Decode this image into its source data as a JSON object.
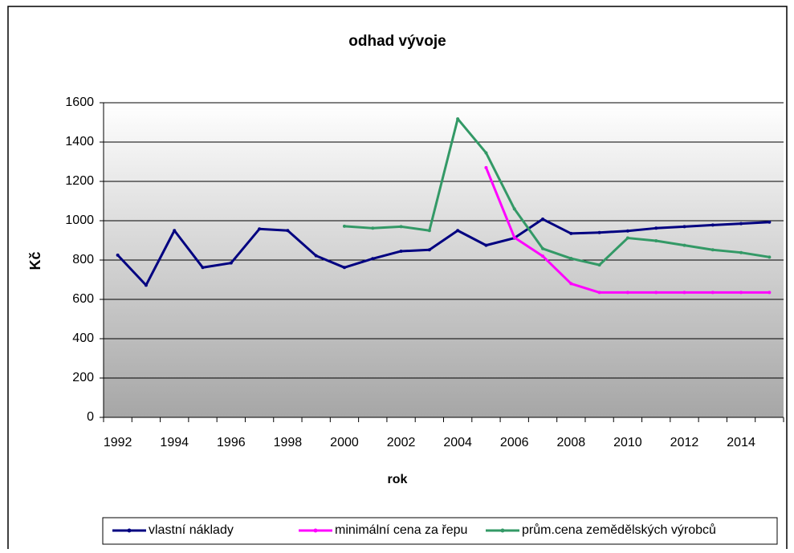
{
  "chart_data": {
    "type": "line",
    "title": "odhad vývoje",
    "x_label": "rok",
    "y_label": "Kč",
    "categories": [
      "1992",
      null,
      "1994",
      null,
      "1996",
      null,
      "1998",
      null,
      "2000",
      null,
      "2002",
      null,
      "2004",
      null,
      "2006",
      null,
      "2008",
      null,
      "2010",
      null,
      "2012",
      null,
      "2014",
      null
    ],
    "series": [
      {
        "name": "vlastní náklady",
        "color": "#000080",
        "values": [
          825,
          672,
          950,
          762,
          785,
          958,
          950,
          822,
          762,
          807,
          845,
          852,
          950,
          875,
          912,
          1008,
          935,
          940,
          948,
          962,
          970,
          978,
          985,
          993
        ]
      },
      {
        "name": "minimální cena za řepu",
        "color": "#ff00ff",
        "values": [
          null,
          null,
          null,
          null,
          null,
          null,
          null,
          null,
          null,
          null,
          null,
          null,
          null,
          1270,
          915,
          820,
          680,
          635,
          635,
          635,
          635,
          635,
          635,
          635
        ]
      },
      {
        "name": "prům.cena zemědělských výrobců",
        "color": "#339966",
        "values": [
          null,
          null,
          null,
          null,
          null,
          null,
          null,
          null,
          972,
          962,
          970,
          950,
          1518,
          1345,
          1060,
          858,
          808,
          775,
          912,
          898,
          875,
          852,
          838,
          815
        ]
      }
    ],
    "ylim": [
      0,
      1600
    ],
    "yticks": [
      0,
      200,
      400,
      600,
      800,
      1000,
      1200,
      1400,
      1600
    ],
    "grid": true,
    "legend": "bottom"
  }
}
